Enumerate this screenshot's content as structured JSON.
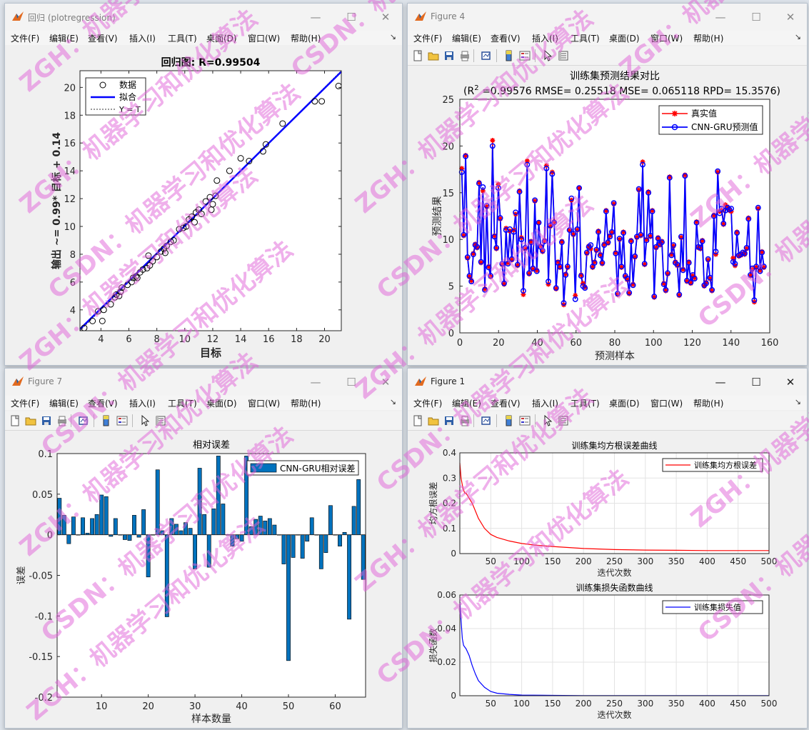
{
  "menu": [
    "文件(F)",
    "编辑(E)",
    "查看(V)",
    "插入(I)",
    "工具(T)",
    "桌面(D)",
    "窗口(W)",
    "帮助(H)"
  ],
  "colors": {
    "series_blue": "#0000ff",
    "series_red": "#ff0000",
    "bar_fill": "#0072bd",
    "watermark": "#e062d8"
  },
  "win1": {
    "title": "回归 (plotregression)",
    "chart_data": {
      "type": "scatter",
      "title": "回归图: R=0.99504",
      "xlabel": "目标",
      "ylabel": "输出 ~= 0.99* 目标 + 0.14",
      "xlim": [
        2.5,
        21.2
      ],
      "ylim": [
        2.5,
        21.2
      ],
      "xticks": [
        4,
        6,
        8,
        10,
        12,
        14,
        16,
        18,
        20
      ],
      "yticks": [
        4,
        6,
        8,
        10,
        12,
        14,
        16,
        18,
        20
      ],
      "legend": [
        "数据",
        "拟合",
        "Y = T"
      ],
      "legend_position": "top-left",
      "fit": {
        "slope": 0.99,
        "intercept": 0.14
      },
      "points": [
        [
          2.8,
          2.7
        ],
        [
          3.4,
          3.2
        ],
        [
          4.1,
          3.2
        ],
        [
          3.8,
          3.9
        ],
        [
          4.2,
          4.0
        ],
        [
          4.7,
          4.4
        ],
        [
          5.0,
          4.9
        ],
        [
          5.1,
          5.1
        ],
        [
          5.3,
          5.0
        ],
        [
          5.4,
          5.3
        ],
        [
          5.5,
          5.6
        ],
        [
          5.9,
          5.8
        ],
        [
          6.2,
          6.0
        ],
        [
          6.3,
          6.3
        ],
        [
          6.5,
          6.4
        ],
        [
          6.6,
          6.3
        ],
        [
          6.8,
          6.7
        ],
        [
          7.0,
          6.9
        ],
        [
          7.3,
          7.0
        ],
        [
          7.5,
          7.2
        ],
        [
          7.7,
          7.5
        ],
        [
          7.4,
          7.9
        ],
        [
          8.0,
          7.8
        ],
        [
          8.3,
          8.2
        ],
        [
          8.5,
          8.4
        ],
        [
          8.7,
          8.6
        ],
        [
          8.6,
          8.1
        ],
        [
          9.0,
          8.9
        ],
        [
          9.2,
          9.0
        ],
        [
          9.6,
          9.8
        ],
        [
          9.9,
          9.9
        ],
        [
          10.1,
          10.0
        ],
        [
          10.3,
          10.5
        ],
        [
          10.5,
          10.7
        ],
        [
          10.7,
          10.3
        ],
        [
          10.8,
          11.0
        ],
        [
          11.0,
          11.2
        ],
        [
          11.2,
          10.9
        ],
        [
          11.5,
          11.8
        ],
        [
          11.8,
          12.1
        ],
        [
          11.9,
          11.2
        ],
        [
          12.0,
          11.6
        ],
        [
          12.2,
          12.2
        ],
        [
          12.3,
          13.3
        ],
        [
          13.2,
          14.0
        ],
        [
          14.0,
          14.9
        ],
        [
          14.6,
          14.7
        ],
        [
          15.6,
          15.4
        ],
        [
          15.8,
          15.9
        ],
        [
          17.0,
          17.4
        ],
        [
          19.3,
          19.0
        ],
        [
          19.8,
          19.0
        ],
        [
          21.0,
          20.1
        ]
      ]
    }
  },
  "win4": {
    "title": "Figure 4",
    "chart_data": {
      "type": "line",
      "title": "训练集预测结果对比",
      "subtitle_prefix": "(R",
      "subtitle_sup": "2",
      "subtitle_rest": " =0.99576 RMSE= 0.25518 MSE= 0.065118 RPD= 15.3576)",
      "xlabel": "预测样本",
      "ylabel": "预测结果",
      "xlim": [
        0,
        160
      ],
      "ylim": [
        0,
        25
      ],
      "xticks": [
        0,
        20,
        40,
        60,
        80,
        100,
        120,
        140,
        160
      ],
      "yticks": [
        0,
        5,
        10,
        15,
        20,
        25
      ],
      "legend_position": "top-right",
      "series": [
        {
          "name": "真实值",
          "color": "#ff0000",
          "marker": "star",
          "values": [
            17.6,
            10.4,
            19.0,
            8.0,
            6.0,
            5.6,
            8.5,
            9.5,
            9.1,
            16.1,
            7.5,
            15.2,
            4.7,
            13.5,
            7.1,
            6.0,
            20.6,
            10.4,
            9.0,
            15.9,
            12.2,
            7.3,
            5.2,
            11.2,
            7.5,
            10.9,
            7.8,
            11.0,
            12.7,
            7.2,
            15.2,
            10.2,
            4.1,
            9.0,
            18.4,
            6.3,
            9.8,
            6.8,
            14.1,
            6.7,
            11.8,
            9.3,
            8.7,
            9.9,
            17.9,
            5.2,
            11.4,
            17.2,
            11.9,
            4.7,
            7.6,
            7.0,
            9.8,
            3.0,
            6.3,
            7.0,
            11.0,
            14.2,
            10.5,
            4.0,
            11.0,
            15.5,
            6.2,
            5.3,
            4.9,
            8.5,
            9.3,
            9.0,
            7.0,
            7.6,
            8.8,
            10.9,
            8.4,
            7.4,
            9.5,
            13.1,
            9.6,
            10.4,
            10.7,
            13.8,
            8.6,
            4.1,
            10.0,
            7.0,
            10.8,
            6.0,
            5.7,
            4.2,
            9.9,
            5.2,
            8.1,
            10.2,
            15.3,
            10.4,
            18.3,
            7.3,
            10.0,
            15.1,
            10.3,
            13.1,
            3.8,
            9.1,
            10.2,
            9.4,
            9.8,
            5.3,
            4.5,
            6.3,
            16.7,
            8.4,
            9.3,
            7.6,
            7.2,
            4.0,
            10.2,
            6.8,
            16.9,
            5.5,
            7.6,
            5.3,
            6.1,
            5.9,
            11.9,
            9.1,
            9.0,
            9.9,
            5.0,
            5.4,
            7.8,
            5.8,
            4.5,
            12.6,
            8.4,
            17.2,
            13.0,
            13.1,
            11.6,
            13.7,
            13.5,
            13.1,
            13.0,
            8.0,
            7.2,
            10.8,
            8.2,
            8.3,
            8.5,
            8.4,
            9.0,
            12.3,
            6.1,
            6.8,
            3.3,
            7.0,
            13.3,
            6.7,
            8.7,
            7.0
          ]
        },
        {
          "name": "CNN-GRU预测值",
          "color": "#0000ff",
          "marker": "circle",
          "values": [
            17.2,
            10.5,
            18.9,
            8.1,
            6.1,
            5.5,
            8.4,
            9.4,
            9.2,
            16.0,
            7.6,
            15.6,
            4.6,
            13.6,
            7.0,
            6.1,
            20.0,
            10.3,
            9.1,
            15.5,
            12.3,
            7.4,
            5.3,
            11.0,
            7.4,
            11.1,
            7.9,
            10.8,
            12.9,
            7.3,
            15.1,
            10.0,
            4.5,
            9.1,
            18.0,
            6.4,
            9.7,
            6.9,
            14.2,
            6.6,
            11.8,
            9.2,
            8.8,
            9.8,
            17.6,
            5.5,
            11.5,
            17.0,
            11.8,
            4.8,
            7.5,
            7.1,
            9.7,
            3.2,
            6.2,
            7.1,
            11.0,
            14.4,
            10.6,
            3.6,
            11.1,
            15.5,
            6.1,
            5.0,
            4.8,
            8.6,
            9.2,
            9.4,
            7.1,
            7.5,
            8.9,
            10.8,
            8.3,
            7.5,
            9.4,
            13.0,
            9.7,
            10.3,
            10.8,
            13.9,
            8.5,
            4.2,
            10.1,
            7.1,
            10.7,
            6.1,
            5.8,
            4.3,
            9.8,
            5.1,
            8.2,
            10.3,
            15.4,
            10.5,
            18.0,
            7.4,
            9.9,
            15.0,
            10.4,
            13.0,
            3.9,
            9.2,
            10.1,
            9.5,
            9.7,
            5.2,
            4.6,
            6.4,
            16.6,
            8.3,
            9.4,
            7.5,
            7.3,
            4.1,
            10.3,
            6.7,
            16.8,
            5.6,
            7.5,
            5.4,
            6.2,
            5.8,
            11.8,
            9.2,
            9.1,
            9.8,
            5.1,
            5.3,
            7.9,
            5.9,
            4.6,
            12.5,
            8.7,
            17.3,
            12.8,
            13.3,
            11.7,
            13.1,
            13.4,
            13.2,
            13.3,
            7.6,
            7.4,
            10.7,
            8.3,
            8.4,
            8.6,
            8.5,
            9.1,
            12.2,
            6.2,
            6.9,
            3.5,
            7.1,
            13.4,
            6.6,
            8.6,
            7.1
          ]
        }
      ]
    }
  },
  "win7": {
    "title": "Figure 7",
    "chart_data": {
      "type": "bar",
      "title": "相对误差",
      "xlabel": "样本数量",
      "ylabel": "误差",
      "xlim": [
        0.5,
        66.5
      ],
      "ylim": [
        -0.2,
        0.1
      ],
      "xticks": [
        10,
        20,
        30,
        40,
        50,
        60
      ],
      "yticks": [
        0.1,
        0.05,
        0,
        -0.05,
        -0.1,
        -0.15,
        -0.2
      ],
      "ytick_labels": [
        "0.1",
        "0.05",
        "0",
        "-0.05",
        "-0.1",
        "-0.15",
        "-0.2"
      ],
      "legend_position": "top-right",
      "series": [
        {
          "name": "CNN-GRU相对误差",
          "color": "#0072bd",
          "values": [
            0.045,
            0.024,
            -0.011,
            0.022,
            0.0,
            0.021,
            0.002,
            0.02,
            0.025,
            0.049,
            0.047,
            -0.002,
            0.02,
            0.0,
            -0.006,
            -0.007,
            0.024,
            -0.003,
            0.031,
            -0.052,
            0.0,
            0.08,
            0.005,
            -0.101,
            0.02,
            0.013,
            0.005,
            0.015,
            0.008,
            -0.042,
            0.082,
            0.025,
            -0.04,
            0.032,
            0.097,
            0.038,
            0.0,
            -0.014,
            -0.005,
            -0.008,
            0.097,
            0.01,
            0.019,
            0.023,
            0.017,
            0.02,
            0.012,
            0.0,
            -0.036,
            -0.155,
            -0.028,
            0.0,
            -0.029,
            -0.008,
            0.021,
            0.0,
            -0.042,
            -0.022,
            0.036,
            0.0,
            -0.014,
            0.003,
            -0.104,
            0.035,
            0.068,
            -0.055
          ]
        }
      ]
    }
  },
  "win1b": {
    "title": "Figure 1",
    "chart_top": {
      "type": "line",
      "title": "训练集均方根误差曲线",
      "xlabel": "迭代次数",
      "ylabel": "均方根误差",
      "xlim": [
        0,
        500
      ],
      "ylim": [
        0,
        0.4
      ],
      "xticks": [
        50,
        100,
        150,
        200,
        250,
        300,
        350,
        400,
        450,
        500
      ],
      "yticks": [
        0,
        0.1,
        0.2,
        0.3,
        0.4
      ],
      "legend_position": "top-right",
      "series": [
        {
          "name": "训练集均方根误差",
          "color": "#ff0000",
          "x": [
            0,
            2,
            5,
            8,
            10,
            15,
            20,
            25,
            30,
            40,
            50,
            60,
            80,
            100,
            120,
            150,
            200,
            250,
            300,
            350,
            400,
            450,
            500
          ],
          "y": [
            0.36,
            0.3,
            0.26,
            0.24,
            0.24,
            0.22,
            0.2,
            0.17,
            0.14,
            0.1,
            0.076,
            0.064,
            0.05,
            0.04,
            0.034,
            0.028,
            0.02,
            0.016,
            0.014,
            0.013,
            0.012,
            0.012,
            0.012
          ]
        }
      ]
    },
    "chart_bottom": {
      "type": "line",
      "title": "训练集损失函数曲线",
      "xlabel": "迭代次数",
      "ylabel": "损失函数",
      "xlim": [
        0,
        500
      ],
      "ylim": [
        0,
        0.06
      ],
      "xticks": [
        50,
        100,
        150,
        200,
        250,
        300,
        350,
        400,
        450,
        500
      ],
      "yticks": [
        0,
        0.02,
        0.04,
        0.06
      ],
      "legend_position": "top-right",
      "series": [
        {
          "name": "训练集损失值",
          "color": "#0000ff",
          "x": [
            0,
            2,
            4,
            6,
            8,
            10,
            15,
            20,
            25,
            30,
            40,
            50,
            60,
            80,
            100,
            150,
            200,
            300,
            400,
            500
          ],
          "y": [
            0.056,
            0.045,
            0.034,
            0.03,
            0.029,
            0.028,
            0.024,
            0.018,
            0.013,
            0.009,
            0.005,
            0.0025,
            0.0015,
            0.0008,
            0.0004,
            0.0002,
            0.0001,
            0.0001,
            0.0001,
            0.0001
          ]
        }
      ]
    }
  },
  "watermark": {
    "line1": "ZGH：机器学习和优化算法",
    "line2": "CSDN：机器学习和优化算法"
  }
}
